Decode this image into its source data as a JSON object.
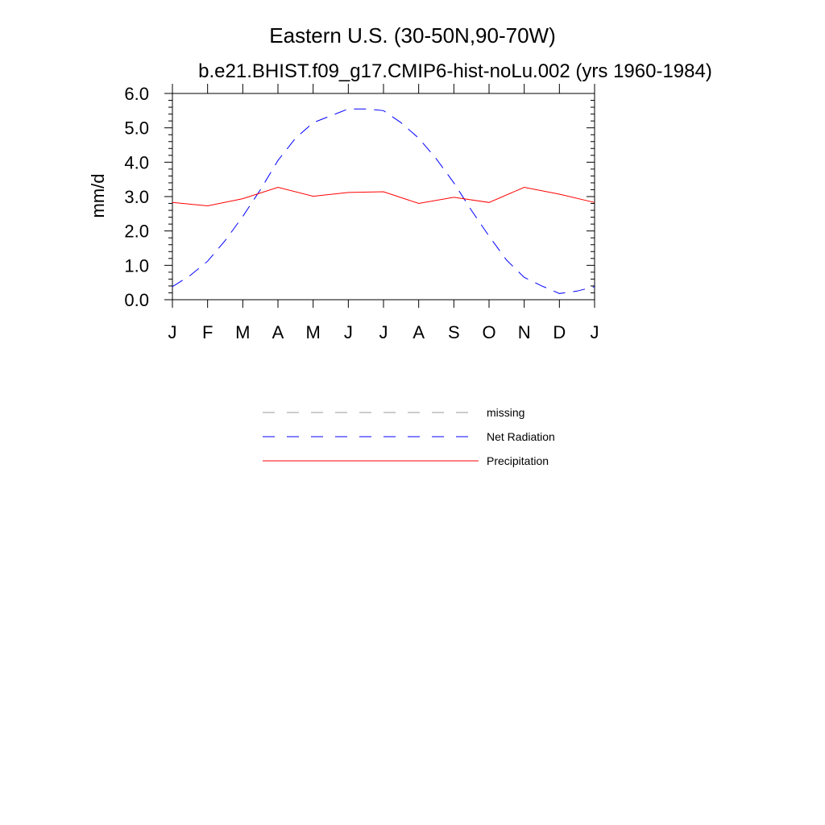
{
  "chart_data": {
    "type": "line",
    "title": "Eastern U.S. (30-50N,90-70W)",
    "subtitle": "b.e21.BHIST.f09_g17.CMIP6-hist-noLu.002 (yrs 1960-1984)",
    "xlabel": "",
    "ylabel": "mm/d",
    "categories": [
      "J",
      "F",
      "M",
      "A",
      "M",
      "J",
      "J",
      "A",
      "S",
      "O",
      "N",
      "D",
      "J"
    ],
    "ylim": [
      0.0,
      6.0
    ],
    "yticks": [
      "0.0",
      "1.0",
      "2.0",
      "3.0",
      "4.0",
      "5.0",
      "6.0"
    ],
    "grid": false,
    "legend_position": "bottom",
    "series": [
      {
        "name": "Net Radiation",
        "color": "#0000ff",
        "dash": "dashed",
        "x": [
          0,
          0.5,
          1,
          1.5,
          2,
          2.5,
          3,
          3.5,
          4,
          4.5,
          5,
          5.5,
          6,
          6.5,
          7,
          7.5,
          8,
          8.5,
          9,
          9.5,
          10,
          10.5,
          11,
          11.5,
          12
        ],
        "values": [
          0.38,
          0.7,
          1.12,
          1.72,
          2.42,
          3.2,
          4.05,
          4.7,
          5.15,
          5.35,
          5.55,
          5.55,
          5.5,
          5.15,
          4.7,
          4.1,
          3.4,
          2.6,
          1.85,
          1.15,
          0.65,
          0.4,
          0.18,
          0.25,
          0.38
        ]
      },
      {
        "name": "Precipitation",
        "color": "#ff0000",
        "dash": "solid",
        "x": [
          0,
          1,
          2,
          3,
          4,
          5,
          6,
          7,
          8,
          9,
          10,
          11,
          12
        ],
        "values": [
          2.83,
          2.73,
          2.94,
          3.27,
          3.01,
          3.12,
          3.14,
          2.8,
          2.98,
          2.83,
          3.27,
          3.07,
          2.83
        ]
      }
    ],
    "legend": [
      {
        "label": "missing",
        "color": "#999999",
        "dash": "dashed"
      },
      {
        "label": "Net Radiation",
        "color": "#0000ff",
        "dash": "dashed"
      },
      {
        "label": "Precipitation",
        "color": "#ff0000",
        "dash": "solid"
      }
    ]
  }
}
